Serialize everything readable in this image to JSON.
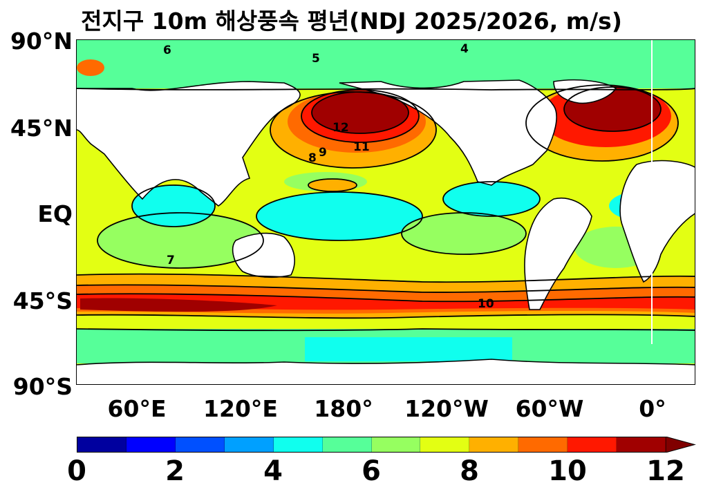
{
  "title": "전지구 10m 해상풍속 평년(NDJ 2025/2026, m/s)",
  "lat_labels": [
    "90°N",
    "45°N",
    "EQ",
    "45°S",
    "90°S"
  ],
  "lon_labels": [
    "60°E",
    "120°E",
    "180°",
    "120°W",
    "60°W",
    "0°"
  ],
  "colorbar": {
    "ticks": [
      "0",
      "2",
      "4",
      "6",
      "8",
      "10",
      "12"
    ],
    "colors": [
      "#00009f",
      "#0000ff",
      "#0050ff",
      "#00a0ff",
      "#10ffee",
      "#56ff99",
      "#96ff60",
      "#e3ff13",
      "#ffb000",
      "#ff6a00",
      "#ff1800",
      "#a00000"
    ],
    "extend_color": "#800000"
  },
  "contour_labels": [
    "4",
    "5",
    "6",
    "7",
    "8",
    "9",
    "10",
    "11",
    "12"
  ]
}
